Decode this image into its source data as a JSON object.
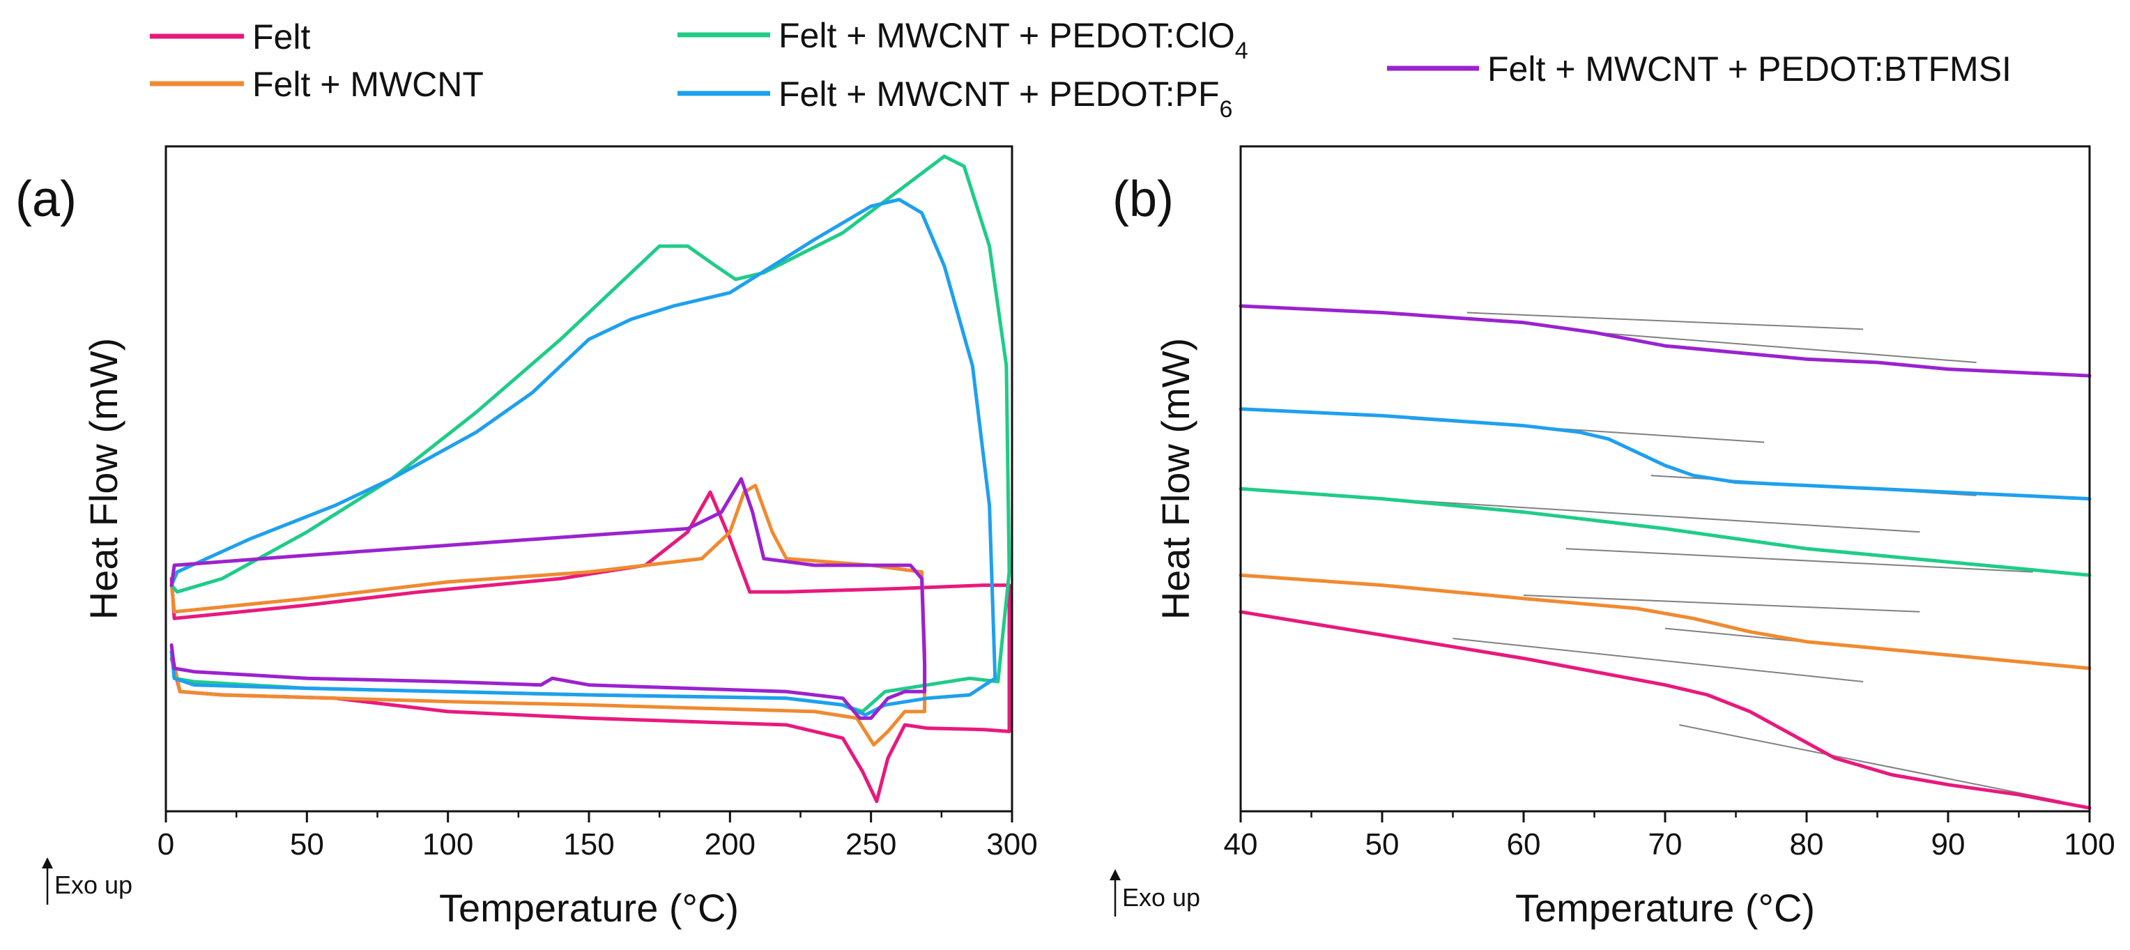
{
  "legend": {
    "entries": [
      {
        "id": "felt",
        "label": "Felt",
        "sub": "",
        "color": "#e8197d"
      },
      {
        "id": "mwcnt",
        "label": "Felt + MWCNT",
        "sub": "",
        "color": "#f08a30"
      },
      {
        "id": "clo4",
        "label": "Felt + MWCNT + PEDOT:ClO",
        "sub": "4",
        "color": "#1fcc88"
      },
      {
        "id": "pf6",
        "label": "Felt + MWCNT + PEDOT:PF",
        "sub": "6",
        "color": "#1ea0ee"
      },
      {
        "id": "btfmsi",
        "label": "Felt + MWCNT + PEDOT:BTFMSI",
        "sub": "",
        "color": "#9b22cf"
      }
    ]
  },
  "chart_data": [
    {
      "panel": "(a)",
      "type": "line",
      "xlabel": "Temperature (°C)",
      "ylabel": "Heat Flow (mW)",
      "exo_note": "Exo up",
      "xlim": [
        0,
        300
      ],
      "ylim": [
        0,
        100
      ],
      "xticks": [
        0,
        50,
        100,
        150,
        200,
        250,
        300
      ],
      "yticks_shown": false,
      "series": [
        {
          "name": "Felt",
          "color": "#e8197d",
          "points": [
            [
              2,
              35
            ],
            [
              3,
              29
            ],
            [
              50,
              31
            ],
            [
              90,
              33
            ],
            [
              140,
              35
            ],
            [
              170,
              37
            ],
            [
              185,
              42
            ],
            [
              193,
              48
            ],
            [
              200,
              41
            ],
            [
              207,
              33
            ],
            [
              220,
              33
            ],
            [
              260,
              33.5
            ],
            [
              290,
              34
            ],
            [
              299,
              34
            ],
            [
              299,
              12
            ],
            [
              290,
              12.3
            ],
            [
              270,
              12.5
            ],
            [
              262,
              13
            ],
            [
              256,
              8
            ],
            [
              252,
              1.5
            ],
            [
              247,
              6
            ],
            [
              240,
              11
            ],
            [
              220,
              13
            ],
            [
              150,
              14
            ],
            [
              100,
              15
            ],
            [
              60,
              17
            ],
            [
              20,
              17.5
            ],
            [
              5,
              18
            ],
            [
              2,
              23
            ]
          ]
        },
        {
          "name": "Felt + MWCNT",
          "color": "#f08a30",
          "points": [
            [
              2,
              34
            ],
            [
              3,
              30
            ],
            [
              50,
              32
            ],
            [
              100,
              34.5
            ],
            [
              150,
              36
            ],
            [
              190,
              38
            ],
            [
              200,
              42
            ],
            [
              205,
              48
            ],
            [
              209,
              49
            ],
            [
              215,
              42
            ],
            [
              220,
              38
            ],
            [
              250,
              37
            ],
            [
              268,
              36
            ],
            [
              269,
              24
            ],
            [
              269,
              15
            ],
            [
              262,
              15
            ],
            [
              256,
              12
            ],
            [
              251,
              10
            ],
            [
              245,
              14
            ],
            [
              230,
              15
            ],
            [
              150,
              16
            ],
            [
              100,
              16.5
            ],
            [
              60,
              17
            ],
            [
              20,
              17.5
            ],
            [
              5,
              18
            ],
            [
              2,
              24
            ]
          ]
        },
        {
          "name": "Felt + MWCNT + PEDOT:ClO4",
          "color": "#1fcc88",
          "points": [
            [
              2,
              34
            ],
            [
              4,
              33
            ],
            [
              20,
              35
            ],
            [
              50,
              42
            ],
            [
              80,
              50
            ],
            [
              110,
              60
            ],
            [
              140,
              71
            ],
            [
              160,
              79
            ],
            [
              175,
              85
            ],
            [
              185,
              85
            ],
            [
              195,
              82
            ],
            [
              202,
              80
            ],
            [
              212,
              81
            ],
            [
              240,
              87
            ],
            [
              265,
              95
            ],
            [
              276,
              98.5
            ],
            [
              283,
              97
            ],
            [
              292,
              85
            ],
            [
              298,
              67
            ],
            [
              299,
              36
            ],
            [
              295,
              19.5
            ],
            [
              285,
              20
            ],
            [
              270,
              19
            ],
            [
              255,
              18
            ],
            [
              247,
              15
            ],
            [
              240,
              16
            ],
            [
              220,
              17
            ],
            [
              150,
              17.5
            ],
            [
              100,
              18
            ],
            [
              50,
              18.5
            ],
            [
              10,
              19.5
            ],
            [
              3,
              20
            ],
            [
              2,
              24
            ]
          ]
        },
        {
          "name": "Felt + MWCNT + PEDOT:PF6",
          "color": "#1ea0ee",
          "points": [
            [
              2,
              34
            ],
            [
              4,
              36
            ],
            [
              30,
              41
            ],
            [
              60,
              46
            ],
            [
              80,
              50
            ],
            [
              110,
              57
            ],
            [
              130,
              63
            ],
            [
              150,
              71
            ],
            [
              165,
              74
            ],
            [
              180,
              76
            ],
            [
              200,
              78
            ],
            [
              230,
              86
            ],
            [
              250,
              91
            ],
            [
              260,
              92
            ],
            [
              268,
              90
            ],
            [
              276,
              82
            ],
            [
              286,
              67
            ],
            [
              292,
              46
            ],
            [
              294,
              20
            ],
            [
              285,
              17.5
            ],
            [
              270,
              17
            ],
            [
              255,
              16
            ],
            [
              248,
              14.5
            ],
            [
              240,
              16
            ],
            [
              220,
              17
            ],
            [
              150,
              17.5
            ],
            [
              100,
              18
            ],
            [
              50,
              18.5
            ],
            [
              10,
              19
            ],
            [
              3,
              20
            ],
            [
              2,
              24
            ]
          ]
        },
        {
          "name": "Felt + MWCNT + PEDOT:BTFMSI",
          "color": "#9b22cf",
          "points": [
            [
              2,
              34
            ],
            [
              3,
              37
            ],
            [
              50,
              38.5
            ],
            [
              100,
              40
            ],
            [
              150,
              41.5
            ],
            [
              185,
              42.5
            ],
            [
              197,
              45
            ],
            [
              204,
              50
            ],
            [
              208,
              45
            ],
            [
              212,
              38
            ],
            [
              230,
              37
            ],
            [
              264,
              37
            ],
            [
              268,
              35
            ],
            [
              269,
              22
            ],
            [
              269,
              18
            ],
            [
              262,
              18
            ],
            [
              256,
              17
            ],
            [
              250,
              14
            ],
            [
              246,
              14
            ],
            [
              240,
              17
            ],
            [
              220,
              18
            ],
            [
              150,
              19
            ],
            [
              137,
              20
            ],
            [
              133,
              19
            ],
            [
              100,
              19.5
            ],
            [
              50,
              20
            ],
            [
              10,
              21
            ],
            [
              3,
              21.5
            ],
            [
              2,
              25
            ]
          ]
        }
      ]
    },
    {
      "panel": "(b)",
      "type": "line",
      "xlabel": "Temperature (°C)",
      "ylabel": "Heat Flow (mW)",
      "exo_note": "Exo up",
      "xlim": [
        40,
        100
      ],
      "ylim": [
        0,
        100
      ],
      "xticks": [
        40,
        50,
        60,
        70,
        80,
        90,
        100
      ],
      "yticks_shown": false,
      "series": [
        {
          "name": "Felt",
          "color": "#e8197d",
          "points": [
            [
              40,
              30
            ],
            [
              50,
              26.5
            ],
            [
              60,
              23
            ],
            [
              65,
              21
            ],
            [
              70,
              19
            ],
            [
              73,
              17.5
            ],
            [
              76,
              15
            ],
            [
              79,
              11.5
            ],
            [
              82,
              8
            ],
            [
              86,
              5.5
            ],
            [
              90,
              4
            ],
            [
              95,
              2.5
            ],
            [
              100,
              0.5
            ]
          ]
        },
        {
          "name": "Felt + MWCNT",
          "color": "#f08a30",
          "points": [
            [
              40,
              35.5
            ],
            [
              50,
              34
            ],
            [
              60,
              32
            ],
            [
              68,
              30.5
            ],
            [
              72,
              29
            ],
            [
              76,
              27
            ],
            [
              80,
              25.5
            ],
            [
              85,
              24.5
            ],
            [
              90,
              23.5
            ],
            [
              95,
              22.5
            ],
            [
              100,
              21.5
            ]
          ]
        },
        {
          "name": "Felt + MWCNT + PEDOT:ClO4",
          "color": "#1fcc88",
          "points": [
            [
              40,
              48.5
            ],
            [
              50,
              47
            ],
            [
              60,
              45
            ],
            [
              70,
              42.5
            ],
            [
              75,
              41
            ],
            [
              80,
              39.5
            ],
            [
              85,
              38.5
            ],
            [
              90,
              37.5
            ],
            [
              95,
              36.5
            ],
            [
              100,
              35.5
            ]
          ]
        },
        {
          "name": "Felt + MWCNT + PEDOT:PF6",
          "color": "#1ea0ee",
          "points": [
            [
              40,
              60.5
            ],
            [
              50,
              59.5
            ],
            [
              60,
              58
            ],
            [
              64,
              57
            ],
            [
              66,
              56
            ],
            [
              68,
              54
            ],
            [
              70,
              52
            ],
            [
              72,
              50.5
            ],
            [
              75,
              49.5
            ],
            [
              80,
              49
            ],
            [
              90,
              48
            ],
            [
              100,
              47
            ]
          ]
        },
        {
          "name": "Felt + MWCNT + PEDOT:BTFMSI",
          "color": "#9b22cf",
          "points": [
            [
              40,
              76
            ],
            [
              50,
              75
            ],
            [
              60,
              73.5
            ],
            [
              65,
              72
            ],
            [
              70,
              70
            ],
            [
              75,
              69
            ],
            [
              80,
              68
            ],
            [
              85,
              67.5
            ],
            [
              90,
              66.5
            ],
            [
              95,
              66
            ],
            [
              100,
              65.5
            ]
          ]
        }
      ],
      "tangent_lines": [
        {
          "series": "Felt",
          "color": "#808080",
          "points": [
            [
              55,
              26
            ],
            [
              84,
              19.5
            ]
          ]
        },
        {
          "series": "Felt",
          "color": "#808080",
          "points": [
            [
              71,
              13
            ],
            [
              98,
              1.5
            ]
          ]
        },
        {
          "series": "Felt + MWCNT",
          "color": "#808080",
          "points": [
            [
              60,
              32.5
            ],
            [
              88,
              30
            ]
          ]
        },
        {
          "series": "Felt + MWCNT",
          "color": "#808080",
          "points": [
            [
              70,
              27.5
            ],
            [
              97,
              22
            ]
          ]
        },
        {
          "series": "Felt + MWCNT + PEDOT:ClO4",
          "color": "#808080",
          "points": [
            [
              50,
              47
            ],
            [
              88,
              42
            ]
          ]
        },
        {
          "series": "Felt + MWCNT + PEDOT:ClO4",
          "color": "#808080",
          "points": [
            [
              63,
              39.5
            ],
            [
              96,
              36
            ]
          ]
        },
        {
          "series": "Felt + MWCNT + PEDOT:PF6",
          "color": "#808080",
          "points": [
            [
              52,
              59
            ],
            [
              77,
              55.5
            ]
          ]
        },
        {
          "series": "Felt + MWCNT + PEDOT:PF6",
          "color": "#808080",
          "points": [
            [
              69,
              50.5
            ],
            [
              92,
              47.5
            ]
          ]
        },
        {
          "series": "Felt + MWCNT + PEDOT:BTFMSI",
          "color": "#808080",
          "points": [
            [
              56,
              75
            ],
            [
              84,
              72.5
            ]
          ]
        },
        {
          "series": "Felt + MWCNT + PEDOT:BTFMSI",
          "color": "#808080",
          "points": [
            [
              65,
              72
            ],
            [
              92,
              67.5
            ]
          ]
        }
      ]
    }
  ]
}
